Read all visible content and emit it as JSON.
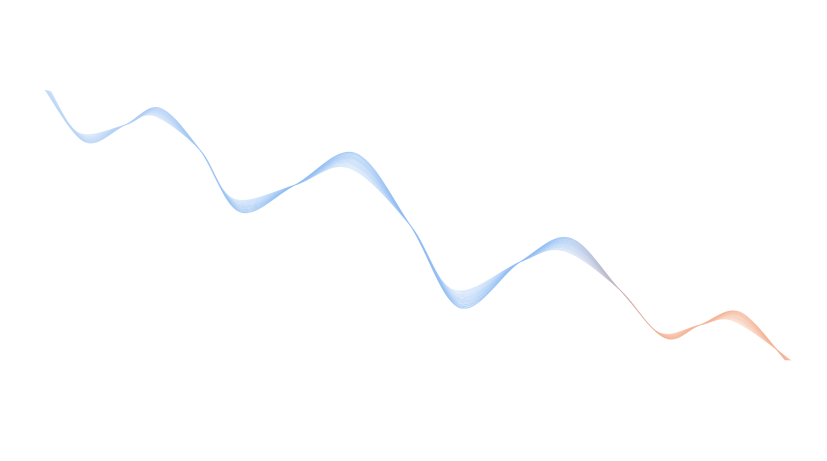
{
  "background_color": "#ffffff",
  "wave": {
    "line_count": 22,
    "colors": {
      "start": "#c9dcf7",
      "main": "#8fbcf2",
      "end": "#f4b394"
    }
  }
}
